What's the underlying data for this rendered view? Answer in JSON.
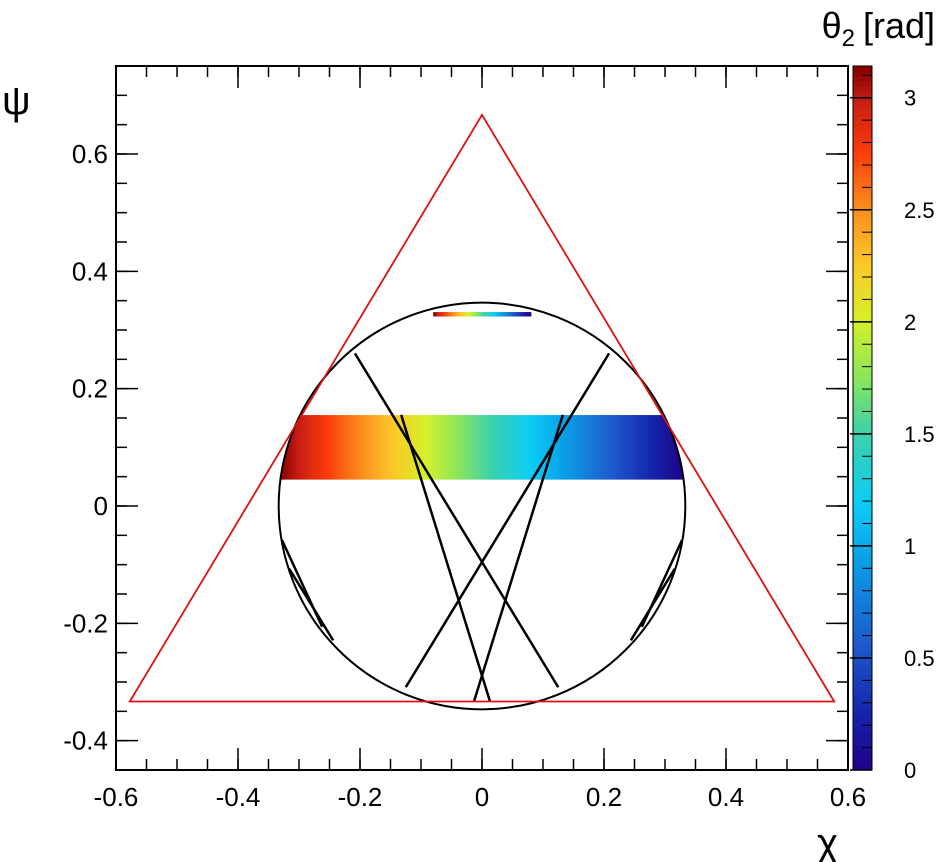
{
  "chart_data": {
    "type": "heatmap",
    "xlabel": "χ",
    "ylabel": "ψ",
    "colorbar_title": {
      "symbol": "θ",
      "subscript": "2",
      "unit": "[rad]"
    },
    "xlim": [
      -0.6,
      0.6
    ],
    "ylim": [
      -0.45,
      0.75
    ],
    "zlim": [
      0,
      3.14159
    ],
    "x_ticks": [
      "-0.6",
      "-0.4",
      "-0.2",
      "0",
      "0.2",
      "0.4",
      "0.6"
    ],
    "y_ticks": [
      "-0.4",
      "-0.2",
      "0",
      "0.2",
      "0.4",
      "0.6"
    ],
    "colorbar_ticks": [
      "0",
      "0.5",
      "1",
      "1.5",
      "2",
      "2.5",
      "3"
    ],
    "triangle": {
      "color": "#dd1111",
      "vertices": [
        [
          0,
          0.6667
        ],
        [
          -0.5774,
          -0.3333
        ],
        [
          0.5774,
          -0.3333
        ]
      ]
    },
    "circle": {
      "color": "#000000",
      "center": [
        0,
        0
      ],
      "radius": 0.3333
    },
    "chords": {
      "color": "#000000",
      "segments": [
        [
          [
            -0.2083,
            0.2602
          ],
          [
            0.125,
            -0.309
          ]
        ],
        [
          [
            0.2083,
            0.2602
          ],
          [
            -0.125,
            -0.309
          ]
        ],
        [
          [
            -0.1325,
            0.1554
          ],
          [
            0.0131,
            -0.333
          ]
        ],
        [
          [
            0.1325,
            0.1554
          ],
          [
            -0.0131,
            -0.333
          ]
        ],
        [
          [
            -0.328,
            -0.058
          ],
          [
            -0.262,
            -0.206
          ]
        ],
        [
          [
            0.328,
            -0.058
          ],
          [
            0.262,
            -0.206
          ]
        ],
        [
          [
            -0.316,
            -0.107
          ],
          [
            -0.244,
            -0.229
          ]
        ],
        [
          [
            0.316,
            -0.107
          ],
          [
            0.244,
            -0.229
          ]
        ]
      ]
    },
    "bands": [
      {
        "y_range": [
          0.045,
          0.155
        ],
        "x_range": [
          -0.3333,
          0.3333
        ],
        "z_at_left": 3.14159,
        "z_at_right": 0
      },
      {
        "y_range": [
          0.323,
          0.3305
        ],
        "x_range": [
          -0.08,
          0.08
        ],
        "z_at_left": 3.14159,
        "z_at_right": 0
      }
    ]
  }
}
